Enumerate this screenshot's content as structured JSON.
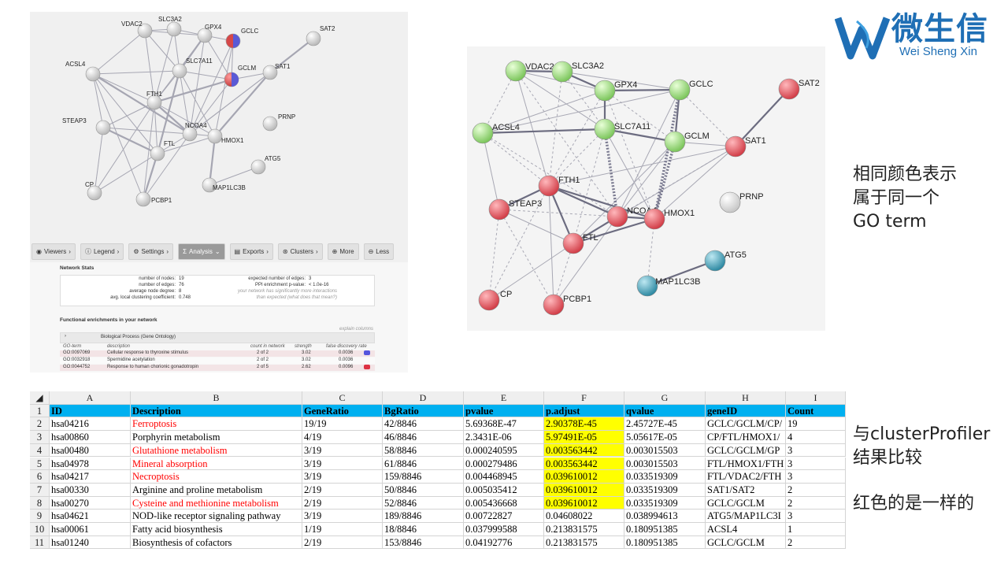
{
  "string_screenshot": {
    "nodes": [
      "VDAC2",
      "SLC3A2",
      "GPX4",
      "GCLC",
      "SAT2",
      "ACSL4",
      "SLC7A11",
      "GCLM",
      "SAT1",
      "FTH1",
      "STEAP3",
      "NCOA4",
      "HMOX1",
      "PRNP",
      "FTL",
      "ATG5",
      "MAP1LC3B",
      "CP",
      "PCBP1"
    ],
    "toolbar": [
      "Viewers",
      "Legend",
      "Settings",
      "Analysis",
      "Exports",
      "Clusters",
      "More",
      "Less"
    ],
    "network_stats": {
      "title": "Network Stats",
      "left": [
        {
          "label": "number of nodes:",
          "value": "19"
        },
        {
          "label": "number of edges:",
          "value": "76"
        },
        {
          "label": "average node degree:",
          "value": "8"
        },
        {
          "label": "avg. local clustering coefficient:",
          "value": "0.748"
        }
      ],
      "right": [
        {
          "label": "expected number of edges:",
          "value": "3"
        },
        {
          "label": "PPI enrichment p-value:",
          "value": "< 1.0e-16"
        }
      ],
      "note_line1": "your network has significantly more interactions",
      "note_line2": "than expected (what does that mean?)"
    },
    "enrichment": {
      "title": "Functional enrichments in your network",
      "explain": "explain columns",
      "section": "Biological Process (Gene Ontology)",
      "columns": [
        "GO-term",
        "description",
        "count in network",
        "strength",
        "false discovery rate"
      ],
      "rows": [
        {
          "term": "GO:0097069",
          "desc": "Cellular response to thyroxine stimulus",
          "count": "2 of 2",
          "strength": "3.02",
          "fdr": "0.0036",
          "swatch": "#5555dd"
        },
        {
          "term": "GO:0032918",
          "desc": "Spermidine acetylation",
          "count": "2 of 2",
          "strength": "3.02",
          "fdr": "0.0036",
          "swatch": ""
        },
        {
          "term": "GO:0044752",
          "desc": "Response to human chorionic gonadotropin",
          "count": "2 of 5",
          "strength": "2.62",
          "fdr": "0.0096",
          "swatch": "#dd3344"
        }
      ]
    }
  },
  "right_network": {
    "nodes": [
      "VDAC2",
      "SLC3A2",
      "GPX4",
      "GCLC",
      "SAT2",
      "ACSL4",
      "SLC7A11",
      "GCLM",
      "SAT1",
      "FTH1",
      "STEAP3",
      "NCOA4",
      "HMOX1",
      "PRNP",
      "FTL",
      "ATG5",
      "MAP1LC3B",
      "CP",
      "PCBP1"
    ],
    "colors": {
      "green": "#8cd46e",
      "red": "#e0535d",
      "blue": "#3d9ab0",
      "grey": "#dcdcdc"
    }
  },
  "logo": {
    "cn": "微生信",
    "en": "Wei Sheng Xin",
    "color": "#1f6fb5"
  },
  "notes": {
    "note1": [
      "相同颜色表示",
      "属于同一个",
      "GO term"
    ],
    "note2": [
      "与clusterProfiler",
      "结果比较"
    ],
    "note3": "红色的是一样的"
  },
  "sheet": {
    "col_letters": [
      "A",
      "B",
      "C",
      "D",
      "E",
      "F",
      "G",
      "H",
      "I"
    ],
    "headers": [
      "ID",
      "Description",
      "GeneRatio",
      "BgRatio",
      "pvalue",
      "p.adjust",
      "qvalue",
      "geneID",
      "Count"
    ],
    "rows": [
      {
        "n": "2",
        "cells": [
          "hsa04216",
          "Ferroptosis",
          "19/19",
          "42/8846",
          "5.69368E-47",
          "2.90378E-45",
          "2.45727E-45",
          "GCLC/GCLM/CP/",
          "19"
        ],
        "red": true,
        "yellow": true
      },
      {
        "n": "3",
        "cells": [
          "hsa00860",
          "Porphyrin metabolism",
          "4/19",
          "46/8846",
          "2.3431E-06",
          "5.97491E-05",
          "5.05617E-05",
          "CP/FTL/HMOX1/",
          "4"
        ],
        "red": false,
        "yellow": true
      },
      {
        "n": "4",
        "cells": [
          "hsa00480",
          "Glutathione metabolism",
          "3/19",
          "58/8846",
          "0.000240595",
          "0.003563442",
          "0.003015503",
          "GCLC/GCLM/GP",
          "3"
        ],
        "red": true,
        "yellow": true
      },
      {
        "n": "5",
        "cells": [
          "hsa04978",
          "Mineral absorption",
          "3/19",
          "61/8846",
          "0.000279486",
          "0.003563442",
          "0.003015503",
          "FTL/HMOX1/FTH",
          "3"
        ],
        "red": true,
        "yellow": true
      },
      {
        "n": "6",
        "cells": [
          "hsa04217",
          "Necroptosis",
          "3/19",
          "159/8846",
          "0.004468945",
          "0.039610012",
          "0.033519309",
          "FTL/VDAC2/FTH",
          "3"
        ],
        "red": true,
        "yellow": true
      },
      {
        "n": "7",
        "cells": [
          "hsa00330",
          "Arginine and proline metabolism",
          "2/19",
          "50/8846",
          "0.005035412",
          "0.039610012",
          "0.033519309",
          "SAT1/SAT2",
          "2"
        ],
        "red": false,
        "yellow": true
      },
      {
        "n": "8",
        "cells": [
          "hsa00270",
          "Cysteine and methionine metabolism",
          "2/19",
          "52/8846",
          "0.005436668",
          "0.039610012",
          "0.033519309",
          "GCLC/GCLM",
          "2"
        ],
        "red": true,
        "yellow": true
      },
      {
        "n": "9",
        "cells": [
          "hsa04621",
          "NOD-like receptor signaling pathway",
          "3/19",
          "189/8846",
          "0.00722827",
          "0.04608022",
          "0.038994613",
          "ATG5/MAP1LC3I",
          "3"
        ],
        "red": false,
        "yellow": false
      },
      {
        "n": "10",
        "cells": [
          "hsa00061",
          "Fatty acid biosynthesis",
          "1/19",
          "18/8846",
          "0.037999588",
          "0.213831575",
          "0.180951385",
          "ACSL4",
          "1"
        ],
        "red": false,
        "yellow": false
      },
      {
        "n": "11",
        "cells": [
          "hsa01240",
          "Biosynthesis of cofactors",
          "2/19",
          "153/8846",
          "0.04192776",
          "0.213831575",
          "0.180951385",
          "GCLC/GCLM",
          "2"
        ],
        "red": false,
        "yellow": false
      }
    ]
  }
}
